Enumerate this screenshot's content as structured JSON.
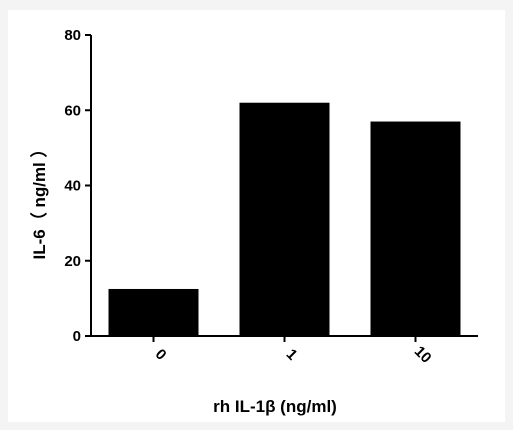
{
  "chart_data": {
    "type": "bar",
    "categories": [
      "0",
      "1",
      "10"
    ],
    "values": [
      12.5,
      62,
      57
    ],
    "title": "",
    "xlabel": "rh IL-1β (ng/ml)",
    "ylabel": "IL-6（ ng/ml ）",
    "ylim": [
      0,
      80
    ],
    "yticks": [
      0,
      20,
      40,
      60,
      80
    ],
    "grid": false,
    "bar_color": "#000000"
  }
}
